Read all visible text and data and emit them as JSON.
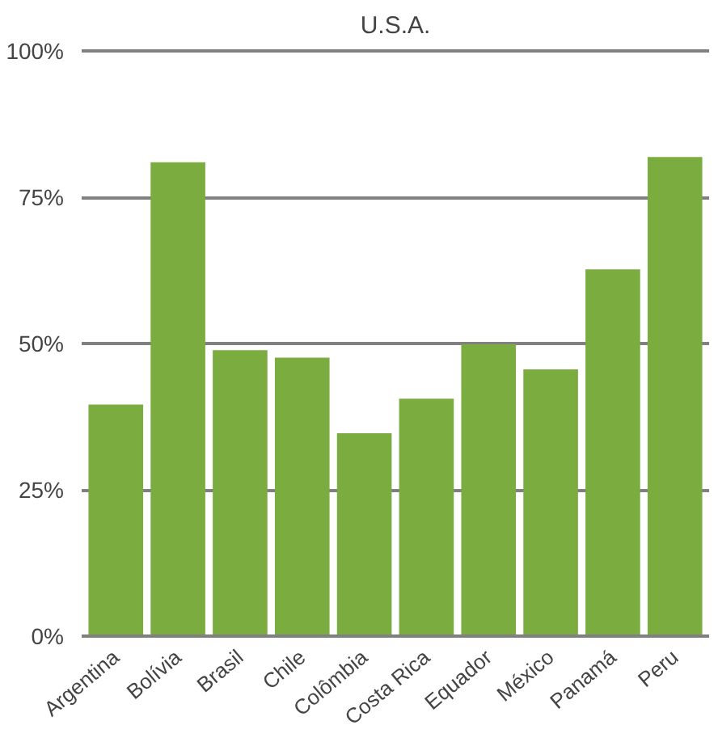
{
  "chart_data": {
    "type": "bar",
    "title": "U.S.A.",
    "categories": [
      "Argentina",
      "Bolívia",
      "Brasil",
      "Chile",
      "Colômbia",
      "Costa Rica",
      "Equador",
      "México",
      "Panamá",
      "Peru"
    ],
    "values": [
      39.6,
      81,
      48.9,
      47.6,
      34.7,
      40.6,
      49.9,
      45.6,
      62.7,
      81.9
    ],
    "color": "#7aac3f",
    "ylim": [
      0,
      100
    ],
    "yticks": [
      {
        "value": 0,
        "label": "0%"
      },
      {
        "value": 25,
        "label": "25%"
      },
      {
        "value": 50,
        "label": "50%"
      },
      {
        "value": 75,
        "label": "75%"
      },
      {
        "value": 100,
        "label": "100%"
      }
    ],
    "grid": "y"
  }
}
